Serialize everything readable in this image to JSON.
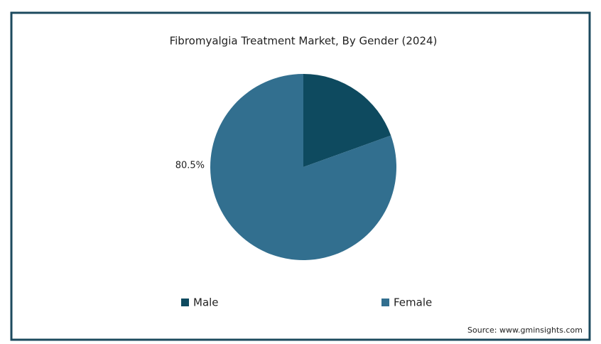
{
  "chart_data": {
    "type": "pie",
    "title": "Fibromyalgia Treatment Market, By Gender (2024)",
    "categories": [
      "Male",
      "Female"
    ],
    "values": [
      19.5,
      80.5
    ],
    "value_labels": [
      null,
      "80.5%"
    ],
    "colors": [
      "#0e4a5f",
      "#326f8f"
    ],
    "legend": "bottom",
    "source": "Source: www.gminsights.com"
  }
}
